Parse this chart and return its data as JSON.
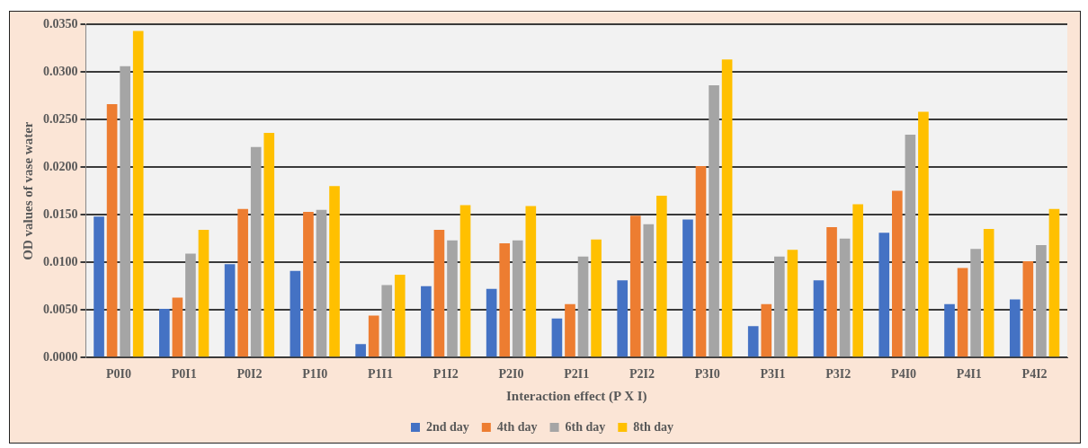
{
  "chart_data": {
    "type": "bar",
    "xlabel": "Interaction effect (P X I)",
    "ylabel": "OD values of vase water",
    "categories": [
      "P0I0",
      "P0I1",
      "P0I2",
      "P1I0",
      "P1I1",
      "P1I2",
      "P2I0",
      "P2I1",
      "P2I2",
      "P3I0",
      "P3I1",
      "P3I2",
      "P4I0",
      "P4I1",
      "P4I2"
    ],
    "series": [
      {
        "name": "2nd day",
        "color": "#4472c4",
        "values": [
          0.0148,
          0.0051,
          0.0098,
          0.0091,
          0.0014,
          0.0075,
          0.0072,
          0.0041,
          0.0081,
          0.0145,
          0.0033,
          0.0081,
          0.0131,
          0.0056,
          0.0061
        ]
      },
      {
        "name": "4th day",
        "color": "#ed7d31",
        "values": [
          0.0266,
          0.0063,
          0.0156,
          0.0153,
          0.0044,
          0.0134,
          0.012,
          0.0056,
          0.0149,
          0.0201,
          0.0056,
          0.0137,
          0.0175,
          0.0094,
          0.0101
        ]
      },
      {
        "name": "6th day",
        "color": "#a5a5a5",
        "values": [
          0.0306,
          0.0109,
          0.0221,
          0.0155,
          0.0076,
          0.0123,
          0.0123,
          0.0106,
          0.014,
          0.0286,
          0.0106,
          0.0125,
          0.0234,
          0.0114,
          0.0118
        ]
      },
      {
        "name": "8th day",
        "color": "#ffc000",
        "values": [
          0.0343,
          0.0134,
          0.0236,
          0.018,
          0.0087,
          0.016,
          0.0159,
          0.0124,
          0.017,
          0.0313,
          0.0113,
          0.0161,
          0.0258,
          0.0135,
          0.0156
        ]
      }
    ],
    "ylim": [
      0,
      0.035
    ],
    "yticks": [
      {
        "value": 0,
        "label": "0.0000"
      },
      {
        "value": 0.005,
        "label": "0.0050"
      },
      {
        "value": 0.01,
        "label": "0.0100"
      },
      {
        "value": 0.015,
        "label": "0.0150"
      },
      {
        "value": 0.02,
        "label": "0.0200"
      },
      {
        "value": 0.025,
        "label": "0.0250"
      },
      {
        "value": 0.03,
        "label": "0.0300"
      },
      {
        "value": 0.035,
        "label": "0.0350"
      }
    ],
    "grid": "y",
    "legend": "bottom"
  }
}
